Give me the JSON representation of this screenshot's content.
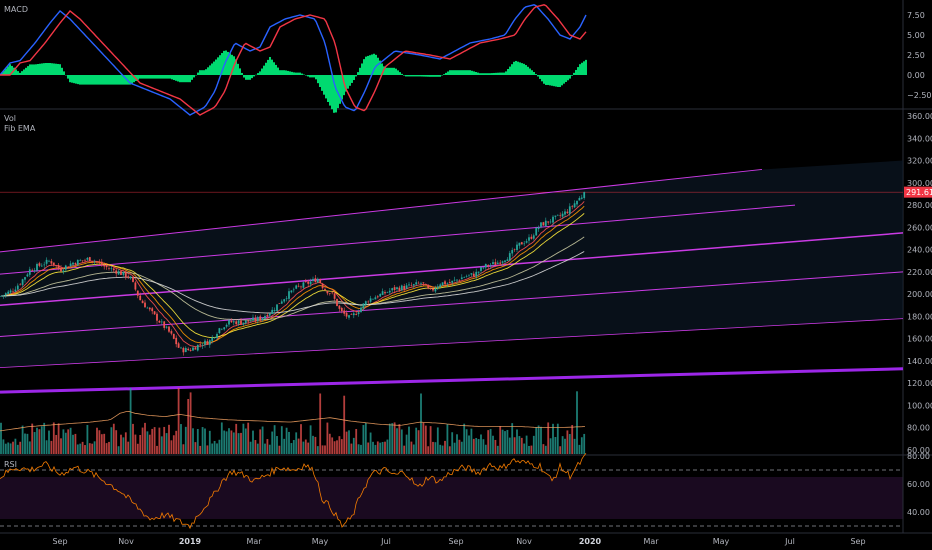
{
  "chart_data": {
    "type": "line",
    "indicator_labels": {
      "macd": "MACD",
      "volume": "Vol",
      "ema": "Fib EMA",
      "rsi": "RSI"
    },
    "last_price": "291.61",
    "colors": {
      "bull": "#26a69a",
      "bear": "#ef5350",
      "channel": "#e040fb",
      "trendline": "#9c27e8",
      "macd_line": "#2962ff",
      "signal_line": "#f23645",
      "histogram": "#00e676",
      "rsi_line": "#f57c00",
      "last_price": "#f23645"
    },
    "x_axis": {
      "labels": [
        "Sep",
        "Nov",
        "2019",
        "Mar",
        "May",
        "Jul",
        "Sep",
        "Nov",
        "2020",
        "Mar",
        "May",
        "Jul",
        "Sep"
      ],
      "bold": [
        "2019",
        "2020"
      ]
    },
    "price_axis": {
      "ticks": [
        60,
        80,
        100,
        120,
        140,
        160,
        180,
        200,
        220,
        240,
        260,
        280,
        300,
        320,
        340,
        360
      ]
    },
    "macd_axis": {
      "ticks": [
        7.5,
        5,
        2.5,
        0,
        -2.5
      ],
      "tick_labels": [
        "7.50",
        "5.00",
        "2.50",
        "0.00",
        "−2.50"
      ]
    },
    "rsi_axis": {
      "ticks": [
        80,
        60,
        40
      ],
      "tick_labels": [
        "80.00",
        "60.00",
        "40.00"
      ],
      "levels": [
        70,
        30
      ]
    },
    "price_anchors": [
      [
        0,
        198
      ],
      [
        12,
        203
      ],
      [
        20,
        210
      ],
      [
        30,
        222
      ],
      [
        40,
        226
      ],
      [
        50,
        230
      ],
      [
        60,
        222
      ],
      [
        72,
        228
      ],
      [
        90,
        232
      ],
      [
        104,
        225
      ],
      [
        118,
        220
      ],
      [
        130,
        215
      ],
      [
        140,
        195
      ],
      [
        150,
        185
      ],
      [
        160,
        175
      ],
      [
        170,
        165
      ],
      [
        180,
        150
      ],
      [
        190,
        150
      ],
      [
        200,
        155
      ],
      [
        210,
        158
      ],
      [
        220,
        170
      ],
      [
        230,
        175
      ],
      [
        245,
        175
      ],
      [
        260,
        178
      ],
      [
        272,
        185
      ],
      [
        282,
        195
      ],
      [
        295,
        205
      ],
      [
        308,
        210
      ],
      [
        318,
        214
      ],
      [
        324,
        205
      ],
      [
        332,
        200
      ],
      [
        340,
        185
      ],
      [
        350,
        178
      ],
      [
        358,
        185
      ],
      [
        368,
        195
      ],
      [
        382,
        200
      ],
      [
        395,
        205
      ],
      [
        410,
        207
      ],
      [
        422,
        210
      ],
      [
        430,
        202
      ],
      [
        440,
        210
      ],
      [
        450,
        210
      ],
      [
        462,
        215
      ],
      [
        475,
        218
      ],
      [
        485,
        225
      ],
      [
        497,
        228
      ],
      [
        510,
        235
      ],
      [
        520,
        245
      ],
      [
        530,
        250
      ],
      [
        540,
        262
      ],
      [
        550,
        266
      ],
      [
        560,
        270
      ],
      [
        568,
        275
      ],
      [
        576,
        283
      ],
      [
        582,
        288
      ],
      [
        586,
        291.61
      ]
    ],
    "volume_anchors": [
      [
        0,
        76
      ],
      [
        30,
        80
      ],
      [
        60,
        82
      ],
      [
        90,
        84
      ],
      [
        110,
        86
      ],
      [
        120,
        92
      ],
      [
        128,
        94
      ],
      [
        135,
        92
      ],
      [
        150,
        90
      ],
      [
        165,
        89
      ],
      [
        180,
        91
      ],
      [
        200,
        88
      ],
      [
        230,
        86
      ],
      [
        260,
        85
      ],
      [
        290,
        84
      ],
      [
        310,
        86
      ],
      [
        330,
        88
      ],
      [
        350,
        85
      ],
      [
        380,
        82
      ],
      [
        400,
        81
      ],
      [
        420,
        84
      ],
      [
        440,
        83
      ],
      [
        460,
        81
      ],
      [
        480,
        80
      ],
      [
        500,
        80
      ],
      [
        520,
        80
      ],
      [
        540,
        79
      ],
      [
        560,
        79
      ],
      [
        586,
        80
      ]
    ],
    "volume_spikes": [
      [
        130,
        115
      ],
      [
        178,
        115
      ],
      [
        190,
        111
      ],
      [
        188,
        105
      ],
      [
        320,
        110
      ],
      [
        345,
        108
      ],
      [
        420,
        110
      ],
      [
        578,
        112
      ]
    ],
    "macd_anchors": [
      [
        0,
        0
      ],
      [
        10,
        1.5
      ],
      [
        20,
        1.8
      ],
      [
        35,
        4
      ],
      [
        50,
        6.5
      ],
      [
        60,
        8
      ],
      [
        70,
        7
      ],
      [
        85,
        5
      ],
      [
        100,
        3
      ],
      [
        115,
        1
      ],
      [
        130,
        -1
      ],
      [
        150,
        -2
      ],
      [
        170,
        -3
      ],
      [
        190,
        -5
      ],
      [
        205,
        -4
      ],
      [
        215,
        -2
      ],
      [
        225,
        1.5
      ],
      [
        235,
        4
      ],
      [
        250,
        3
      ],
      [
        260,
        3.5
      ],
      [
        270,
        6
      ],
      [
        285,
        7
      ],
      [
        300,
        7.5
      ],
      [
        315,
        7
      ],
      [
        325,
        4
      ],
      [
        335,
        -1.5
      ],
      [
        345,
        -4
      ],
      [
        355,
        -4.5
      ],
      [
        365,
        -2
      ],
      [
        375,
        1
      ],
      [
        395,
        3
      ],
      [
        420,
        2.5
      ],
      [
        440,
        2
      ],
      [
        455,
        3
      ],
      [
        470,
        4
      ],
      [
        490,
        4.5
      ],
      [
        505,
        5
      ],
      [
        515,
        7
      ],
      [
        525,
        8.5
      ],
      [
        535,
        8.8
      ],
      [
        548,
        7
      ],
      [
        560,
        5
      ],
      [
        570,
        4.5
      ],
      [
        580,
        6
      ],
      [
        586,
        7.5
      ]
    ],
    "rsi_anchors": [
      [
        0,
        65
      ],
      [
        15,
        72
      ],
      [
        30,
        70
      ],
      [
        45,
        74
      ],
      [
        60,
        67
      ],
      [
        75,
        72
      ],
      [
        90,
        68
      ],
      [
        105,
        62
      ],
      [
        120,
        55
      ],
      [
        135,
        45
      ],
      [
        150,
        35
      ],
      [
        165,
        38
      ],
      [
        180,
        33
      ],
      [
        190,
        30
      ],
      [
        200,
        40
      ],
      [
        212,
        50
      ],
      [
        222,
        62
      ],
      [
        232,
        69
      ],
      [
        245,
        66
      ],
      [
        255,
        62
      ],
      [
        265,
        66
      ],
      [
        280,
        72
      ],
      [
        295,
        70
      ],
      [
        305,
        74
      ],
      [
        315,
        68
      ],
      [
        322,
        50
      ],
      [
        332,
        42
      ],
      [
        342,
        30
      ],
      [
        352,
        36
      ],
      [
        362,
        55
      ],
      [
        372,
        67
      ],
      [
        385,
        70
      ],
      [
        395,
        66
      ],
      [
        405,
        69
      ],
      [
        418,
        57
      ],
      [
        428,
        65
      ],
      [
        440,
        62
      ],
      [
        450,
        68
      ],
      [
        465,
        72
      ],
      [
        478,
        68
      ],
      [
        490,
        74
      ],
      [
        502,
        71
      ],
      [
        512,
        77
      ],
      [
        525,
        75
      ],
      [
        540,
        73
      ],
      [
        552,
        62
      ],
      [
        560,
        72
      ],
      [
        570,
        66
      ],
      [
        580,
        75
      ],
      [
        586,
        80
      ]
    ]
  }
}
